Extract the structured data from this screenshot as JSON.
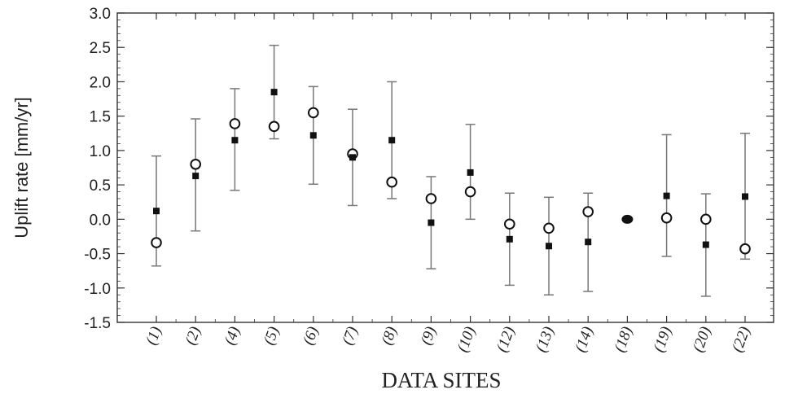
{
  "chart_data": {
    "type": "scatter",
    "title": "",
    "xlabel": "DATA SITES",
    "ylabel": "Uplift rate [mm/yr]",
    "ylim": [
      -1.5,
      3.0
    ],
    "yticks": [
      "-1.5",
      "-1.0",
      "-0.5",
      "0.0",
      "0.5",
      "1.0",
      "1.5",
      "2.0",
      "2.5",
      "3.0"
    ],
    "categories": [
      "(1)",
      "(2)",
      "(4)",
      "(5)",
      "(6)",
      "(7)",
      "(8)",
      "(9)",
      "(10)",
      "(12)",
      "(13)",
      "(14)",
      "(18)",
      "(19)",
      "(20)",
      "(22)"
    ],
    "grid": false,
    "series": [
      {
        "marker": "square",
        "values": [
          0.12,
          0.63,
          1.15,
          1.85,
          1.22,
          0.9,
          1.15,
          -0.05,
          0.68,
          -0.29,
          -0.39,
          -0.33,
          null,
          0.34,
          -0.37,
          0.33
        ],
        "error_low": [
          -0.68,
          -0.17,
          0.42,
          1.17,
          0.51,
          0.2,
          0.3,
          -0.72,
          0.0,
          -0.96,
          -1.1,
          -1.05,
          null,
          -0.54,
          -1.12,
          -0.58
        ],
        "error_high": [
          0.92,
          1.46,
          1.9,
          2.53,
          1.93,
          1.6,
          2.0,
          0.62,
          1.38,
          0.38,
          0.32,
          0.38,
          null,
          1.23,
          0.37,
          1.25
        ]
      },
      {
        "marker": "open-circle",
        "values": [
          -0.34,
          0.8,
          1.39,
          1.35,
          1.55,
          0.95,
          0.54,
          0.3,
          0.4,
          -0.07,
          -0.13,
          0.11,
          null,
          0.02,
          0.0,
          -0.43
        ]
      },
      {
        "marker": "filled-circle",
        "values": [
          null,
          null,
          null,
          null,
          null,
          null,
          null,
          null,
          null,
          null,
          null,
          null,
          0.0,
          null,
          null,
          null
        ]
      }
    ]
  }
}
